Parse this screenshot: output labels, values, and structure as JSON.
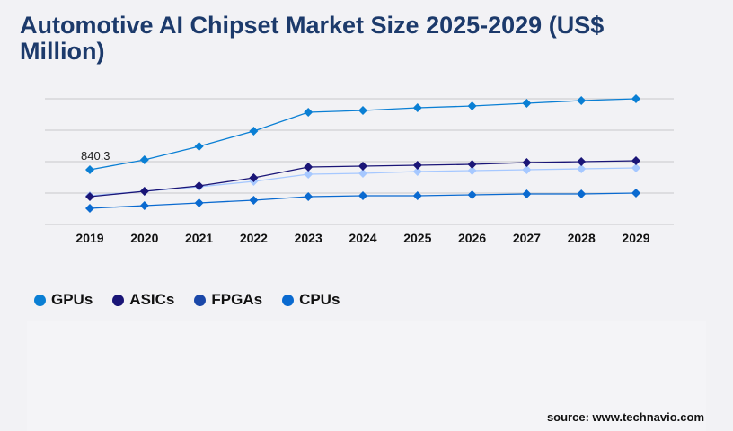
{
  "chart_data": {
    "type": "line",
    "title": "Automotive AI Chipset Market Size 2025-2029 (US$ Million)",
    "categories": [
      "2019",
      "2020",
      "2021",
      "2022",
      "2023",
      "2024",
      "2025",
      "2026",
      "2027",
      "2028",
      "2029"
    ],
    "ylim": [
      0,
      1928.5
    ],
    "grid": true,
    "legend_position": "bottom-left",
    "annotations": [
      {
        "series": "GPUs",
        "category": "2019",
        "text": "840.3"
      }
    ],
    "series": [
      {
        "name": "GPUs",
        "color": "#0a7fd4",
        "line_color": "#0a7fd4",
        "values": [
          840.3,
          992,
          1198,
          1433,
          1722,
          1749,
          1791,
          1818,
          1860,
          1901,
          1928
        ]
      },
      {
        "name": "ASICs",
        "color": "#1a1577",
        "line_color": "#1a1577",
        "values": [
          427,
          510,
          592,
          716,
          882,
          895,
          909,
          923,
          950,
          964,
          978
        ]
      },
      {
        "name": "FPGAs",
        "color": "#1a47a8",
        "line_color": "#a6c8ff",
        "values": [
          441,
          510,
          579,
          661,
          771,
          785,
          813,
          827,
          840,
          854,
          868
        ]
      },
      {
        "name": "CPUs",
        "color": "#0a6ad0",
        "line_color": "#0a6ad0",
        "values": [
          248,
          289,
          331,
          372,
          427,
          441,
          441,
          455,
          468,
          468,
          482
        ]
      }
    ]
  },
  "source": "source: www.technavio.com"
}
